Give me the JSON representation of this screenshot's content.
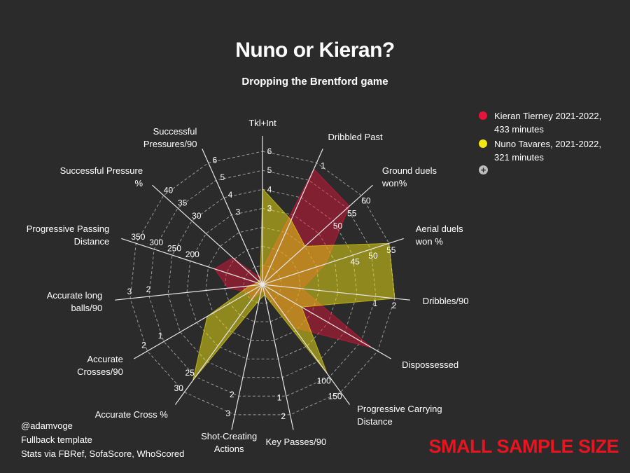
{
  "title": "Nuno or Kieran?",
  "subtitle": "Dropping the Brentford game",
  "legend": {
    "items": [
      {
        "label": "Kieran Tierney 2021-2022, 433 minutes",
        "color": "#e8133a"
      },
      {
        "label": "Nuno Tavares, 2021-2022, 321 minutes",
        "color": "#f2e613"
      }
    ],
    "extra_icon": "plus-circle-icon"
  },
  "credits": [
    "@adamvoge",
    "Fullback template",
    "Stats via FBRef, SofaScore, WhoScored"
  ],
  "warning": "SMALL SAMPLE SIZE",
  "chart_data": {
    "type": "radar",
    "title": "Nuno or Kieran?",
    "subtitle": "Dropping the Brentford game",
    "rings": 7,
    "axes": [
      {
        "label": "Tkl+Int",
        "ticks": [
          "3",
          "4",
          "5",
          "6"
        ]
      },
      {
        "label": "Dribbled Past",
        "ticks": [
          "1"
        ]
      },
      {
        "label": "Ground duels won%",
        "ticks": [
          "50",
          "55",
          "60"
        ]
      },
      {
        "label": "Aerial duels won %",
        "ticks": [
          "45",
          "50",
          "55"
        ]
      },
      {
        "label": "Dribbles/90",
        "ticks": [
          "1",
          "2"
        ]
      },
      {
        "label": "Dispossessed",
        "ticks": []
      },
      {
        "label": "Progressive Carrying Distance",
        "ticks": [
          "100",
          "150"
        ]
      },
      {
        "label": "Key Passes/90",
        "ticks": [
          "1",
          "2"
        ]
      },
      {
        "label": "Shot-Creating Actions",
        "ticks": [
          "2",
          "3"
        ]
      },
      {
        "label": "Accurate Cross %",
        "ticks": [
          "25",
          "30"
        ]
      },
      {
        "label": "Accurate Crosses/90",
        "ticks": [
          "1",
          "2"
        ]
      },
      {
        "label": "Accurate long balls/90",
        "ticks": [
          "2",
          "3"
        ]
      },
      {
        "label": "Progressive Passing Distance",
        "ticks": [
          "200",
          "250",
          "300",
          "350"
        ]
      },
      {
        "label": "Successful Pressure %",
        "ticks": [
          "30",
          "35",
          "40"
        ]
      },
      {
        "label": "Successful Pressures/90",
        "ticks": [
          "3",
          "4",
          "5",
          "6"
        ]
      }
    ],
    "series": [
      {
        "name": "Kieran Tierney 2021-2022, 433 minutes",
        "color": "#e8133a",
        "values": [
          0.12,
          0.95,
          0.88,
          0.5,
          0.3,
          0.95,
          0.4,
          0.06,
          0.06,
          0.14,
          0.12,
          0.26,
          0.38,
          0.3,
          0.06
        ]
      },
      {
        "name": "Nuno Tavares, 2021-2022, 321 minutes",
        "color": "#f2e613",
        "values": [
          0.72,
          0.53,
          0.43,
          1.0,
          1.0,
          0.34,
          0.83,
          0.08,
          0.12,
          0.89,
          0.48,
          0.1,
          0.04,
          0.04,
          0.04
        ]
      }
    ]
  }
}
